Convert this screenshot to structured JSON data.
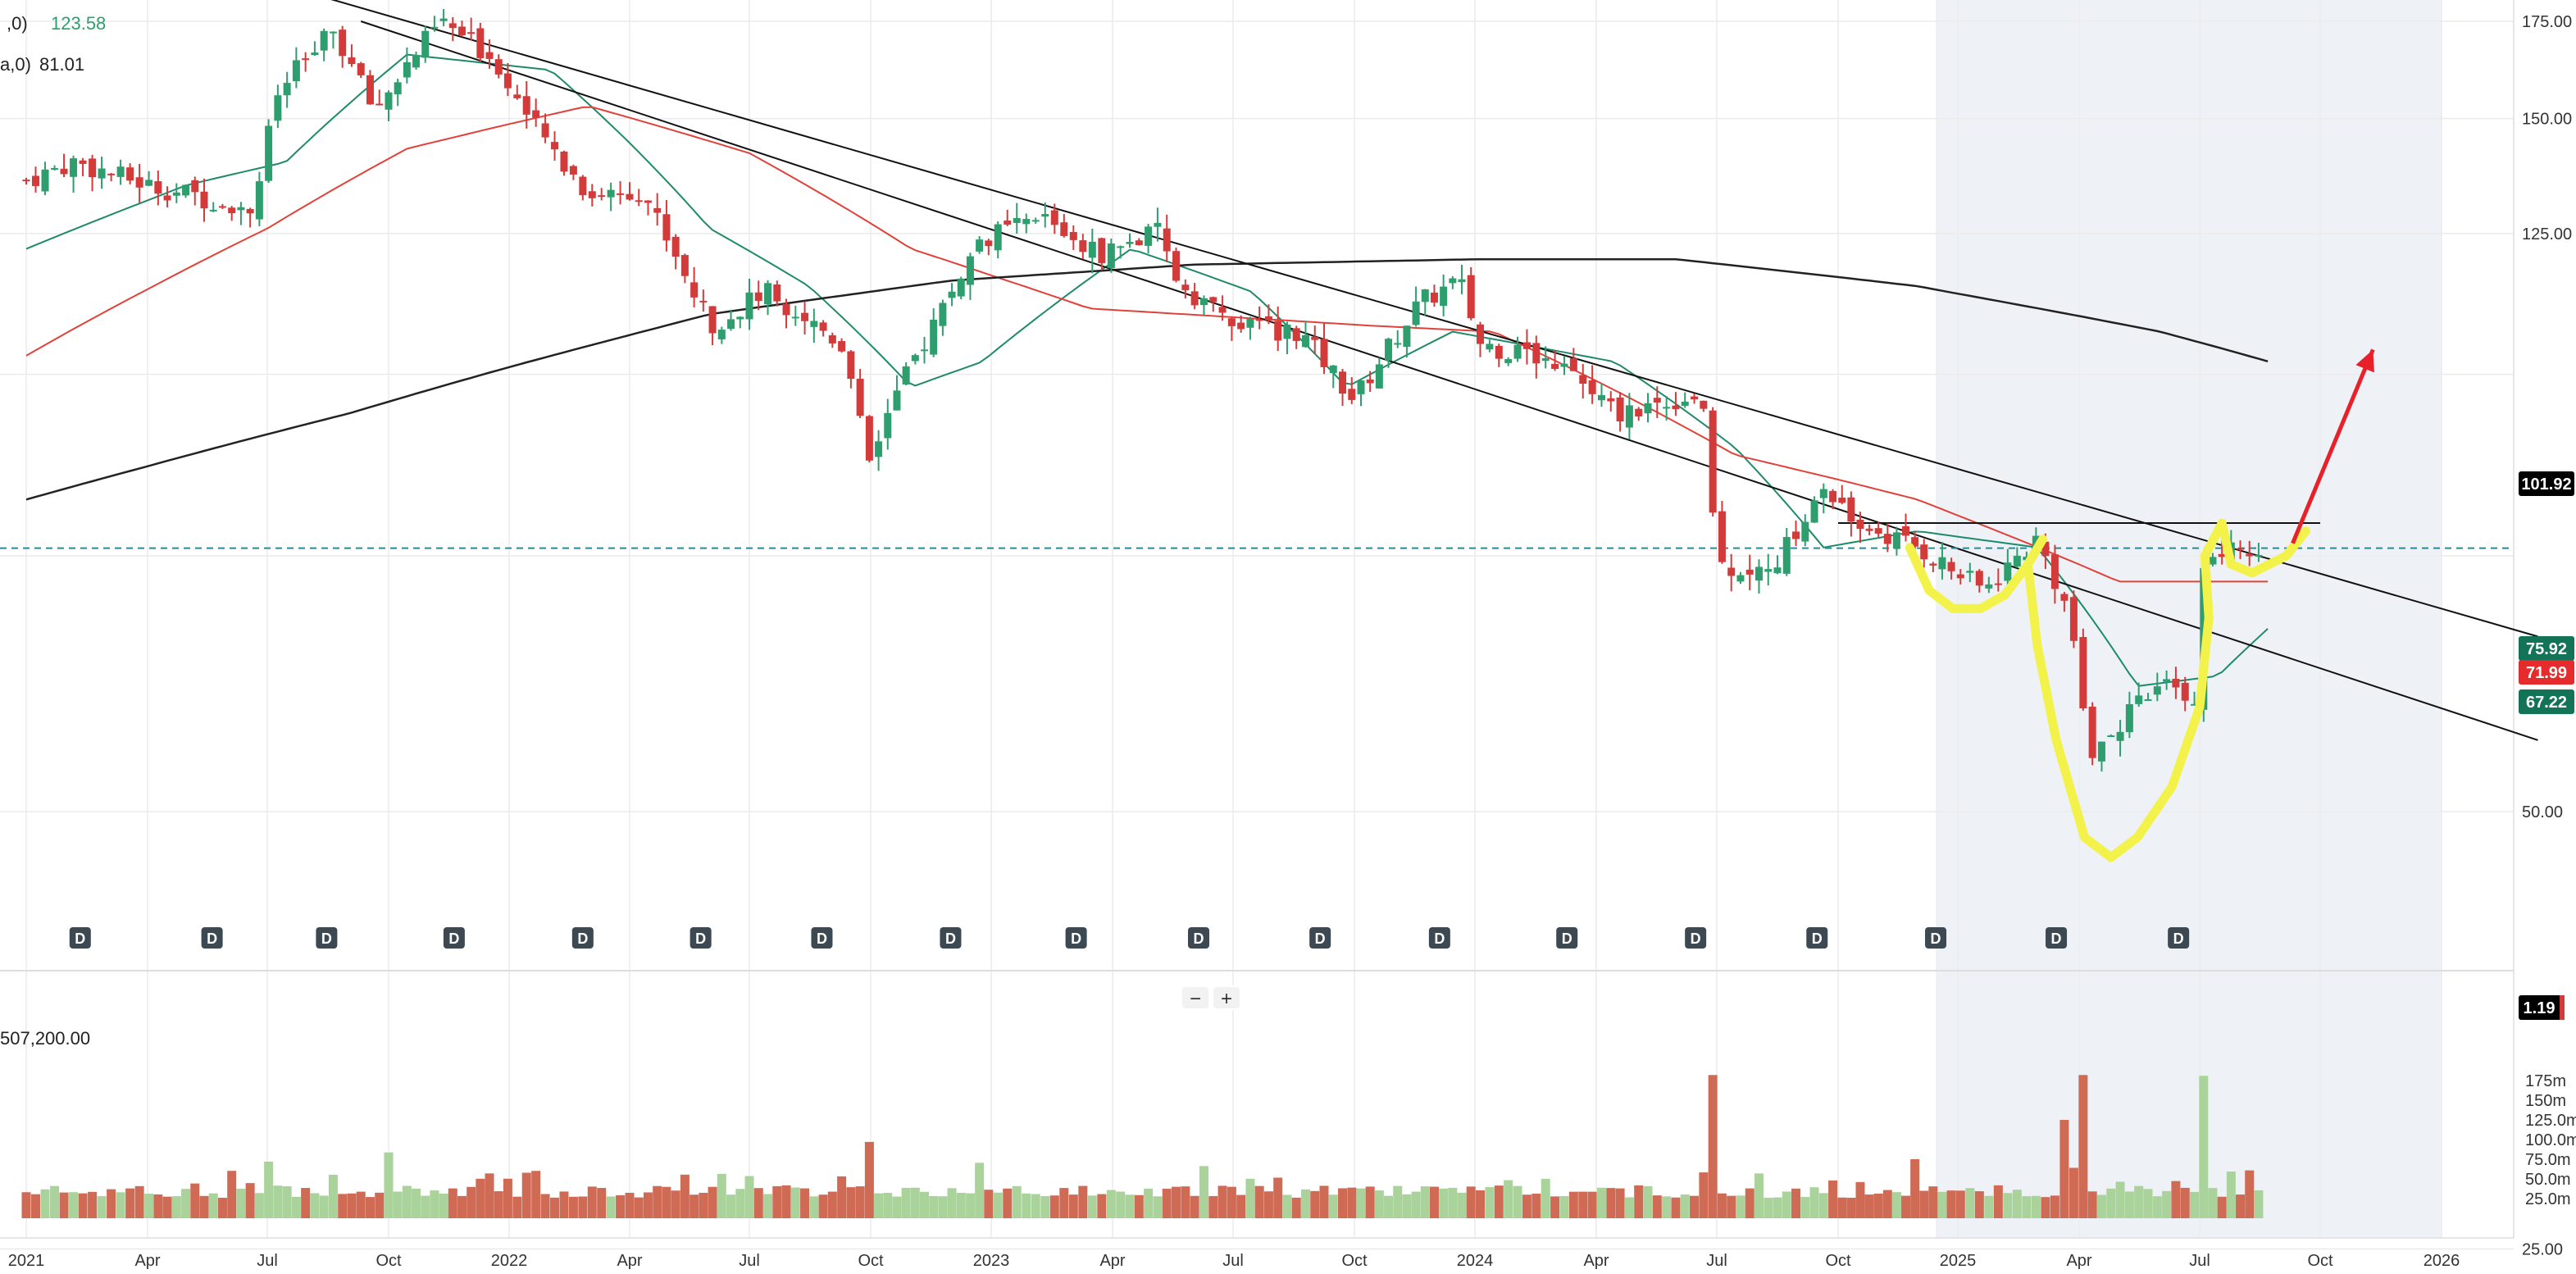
{
  "legend": {
    "ma_fast_label": ",0)",
    "ma_fast_value": "123.58",
    "ma_slow_label": "a,0)",
    "ma_slow_value": "81.01",
    "volume_value": "507,200.00"
  },
  "price_badges": [
    {
      "text": "101.92",
      "bg": "#000000",
      "price": 101.92
    },
    {
      "text": "75.92",
      "bg": "#137357",
      "price": 75.92
    },
    {
      "text": "71.99",
      "bg": "#e52b2b",
      "price": 71.99
    },
    {
      "text": "67.22",
      "bg": "#137357",
      "price": 67.22
    }
  ],
  "volume_badge": {
    "text": "1.19"
  },
  "zoom": {
    "minus": "−",
    "plus": "+"
  },
  "dividend_marker": "D",
  "colors": {
    "up": "#2f9e6e",
    "down": "#d33b3b",
    "vol_up": "#a9d39a",
    "vol_down": "#cf6a55",
    "ma20": "#1f8a6a",
    "ma50": "#e0423a",
    "ma200": "#222222",
    "highlight": "#f2f24a",
    "arrow": "#e8202a",
    "shade": "#eef2f6"
  },
  "chart_data": {
    "type": "candlestick",
    "interval": "weekly",
    "price_axis": {
      "ticks": [
        175,
        150,
        125,
        50,
        25
      ],
      "tick_labels": [
        "175.00",
        "150.00",
        "125.00",
        "50.00",
        "25.00"
      ],
      "log_scale": true
    },
    "volume_axis": {
      "ticks": [
        25,
        50,
        75,
        100,
        125,
        150,
        175
      ],
      "tick_labels": [
        "25.0m",
        "50.0m",
        "75.0m",
        "100.0m",
        "125.0m",
        "150m",
        "175m"
      ]
    },
    "x_axis": {
      "tick_labels": [
        "2021",
        "Apr",
        "Jul",
        "Oct",
        "2022",
        "Apr",
        "Jul",
        "Oct",
        "2023",
        "Apr",
        "Jul",
        "Oct",
        "2024",
        "Apr",
        "Jul",
        "Oct",
        "2025",
        "Apr",
        "Jul",
        "Oct",
        "2026"
      ],
      "tick_dates": [
        "2021-01-01",
        "2021-04-01",
        "2021-07-01",
        "2021-10-01",
        "2022-01-01",
        "2022-04-01",
        "2022-07-01",
        "2022-10-01",
        "2023-01-01",
        "2023-04-01",
        "2023-07-01",
        "2023-10-01",
        "2024-01-01",
        "2024-04-01",
        "2024-07-01",
        "2024-10-01",
        "2025-01-01",
        "2025-04-01",
        "2025-07-01",
        "2025-10-01",
        "2026-01-01"
      ]
    },
    "price_keypoints": [
      {
        "date": "2021-01-01",
        "close": 136
      },
      {
        "date": "2021-02-05",
        "close": 140
      },
      {
        "date": "2021-04-01",
        "close": 135
      },
      {
        "date": "2021-06-20",
        "close": 130
      },
      {
        "date": "2021-07-10",
        "close": 157
      },
      {
        "date": "2021-08-20",
        "close": 172
      },
      {
        "date": "2021-09-20",
        "close": 152
      },
      {
        "date": "2021-11-10",
        "close": 175
      },
      {
        "date": "2021-12-20",
        "close": 165
      },
      {
        "date": "2022-01-20",
        "close": 148
      },
      {
        "date": "2022-03-01",
        "close": 133
      },
      {
        "date": "2022-04-10",
        "close": 134
      },
      {
        "date": "2022-06-01",
        "close": 108
      },
      {
        "date": "2022-07-15",
        "close": 114
      },
      {
        "date": "2022-09-10",
        "close": 105
      },
      {
        "date": "2022-09-30",
        "close": 88
      },
      {
        "date": "2022-11-10",
        "close": 105
      },
      {
        "date": "2022-12-25",
        "close": 124
      },
      {
        "date": "2023-02-10",
        "close": 128
      },
      {
        "date": "2023-03-20",
        "close": 121
      },
      {
        "date": "2023-05-05",
        "close": 125
      },
      {
        "date": "2023-05-20",
        "close": 116
      },
      {
        "date": "2023-07-01",
        "close": 108
      },
      {
        "date": "2023-08-20",
        "close": 107
      },
      {
        "date": "2023-10-01",
        "close": 96
      },
      {
        "date": "2023-11-20",
        "close": 112
      },
      {
        "date": "2023-12-20",
        "close": 116
      },
      {
        "date": "2024-01-05",
        "close": 105
      },
      {
        "date": "2024-03-01",
        "close": 102
      },
      {
        "date": "2024-04-15",
        "close": 94
      },
      {
        "date": "2024-06-20",
        "close": 97
      },
      {
        "date": "2024-07-01",
        "close": 74
      },
      {
        "date": "2024-08-10",
        "close": 73
      },
      {
        "date": "2024-09-20",
        "close": 83
      },
      {
        "date": "2024-10-15",
        "close": 79
      },
      {
        "date": "2024-12-01",
        "close": 76
      },
      {
        "date": "2025-01-20",
        "close": 71
      },
      {
        "date": "2025-03-01",
        "close": 77
      },
      {
        "date": "2025-03-25",
        "close": 68
      },
      {
        "date": "2025-04-10",
        "close": 55
      },
      {
        "date": "2025-06-01",
        "close": 61
      },
      {
        "date": "2025-06-28",
        "close": 60
      },
      {
        "date": "2025-07-05",
        "close": 75
      },
      {
        "date": "2025-08-20",
        "close": 76
      }
    ],
    "moving_averages": [
      {
        "period": 20,
        "points": [
          {
            "date": "2021-01-01",
            "value": 122
          },
          {
            "date": "2021-05-01",
            "value": 135
          },
          {
            "date": "2021-07-15",
            "value": 140
          },
          {
            "date": "2021-10-15",
            "value": 166
          },
          {
            "date": "2022-02-01",
            "value": 162
          },
          {
            "date": "2022-06-01",
            "value": 126
          },
          {
            "date": "2022-08-15",
            "value": 115
          },
          {
            "date": "2022-11-01",
            "value": 98
          },
          {
            "date": "2022-12-25",
            "value": 102
          },
          {
            "date": "2023-04-15",
            "value": 122
          },
          {
            "date": "2023-07-15",
            "value": 114
          },
          {
            "date": "2023-09-25",
            "value": 98
          },
          {
            "date": "2023-12-15",
            "value": 107
          },
          {
            "date": "2024-04-15",
            "value": 102
          },
          {
            "date": "2024-07-15",
            "value": 89
          },
          {
            "date": "2024-09-20",
            "value": 76
          },
          {
            "date": "2024-12-01",
            "value": 78
          },
          {
            "date": "2025-03-01",
            "value": 76
          },
          {
            "date": "2025-05-15",
            "value": 61
          },
          {
            "date": "2025-07-15",
            "value": 62
          },
          {
            "date": "2025-08-25",
            "value": 67.2
          }
        ]
      },
      {
        "period": 50,
        "points": [
          {
            "date": "2021-01-01",
            "value": 103
          },
          {
            "date": "2021-07-01",
            "value": 126
          },
          {
            "date": "2021-10-15",
            "value": 143
          },
          {
            "date": "2022-03-01",
            "value": 153
          },
          {
            "date": "2022-07-01",
            "value": 142
          },
          {
            "date": "2022-11-01",
            "value": 122
          },
          {
            "date": "2023-03-15",
            "value": 111
          },
          {
            "date": "2023-10-15",
            "value": 108
          },
          {
            "date": "2024-01-15",
            "value": 107
          },
          {
            "date": "2024-07-15",
            "value": 88
          },
          {
            "date": "2024-12-01",
            "value": 82
          },
          {
            "date": "2025-05-01",
            "value": 72
          },
          {
            "date": "2025-08-25",
            "value": 72
          }
        ]
      },
      {
        "period": 200,
        "points": [
          {
            "date": "2021-01-01",
            "value": 82
          },
          {
            "date": "2021-09-01",
            "value": 94
          },
          {
            "date": "2022-06-01",
            "value": 110
          },
          {
            "date": "2022-12-01",
            "value": 116
          },
          {
            "date": "2023-06-01",
            "value": 119
          },
          {
            "date": "2024-01-01",
            "value": 120
          },
          {
            "date": "2024-06-01",
            "value": 120
          },
          {
            "date": "2024-12-01",
            "value": 115
          },
          {
            "date": "2025-06-01",
            "value": 107
          },
          {
            "date": "2025-08-25",
            "value": 101.9
          }
        ]
      }
    ],
    "volume_keypoints": [
      {
        "date": "2021-07-05",
        "value": 72
      },
      {
        "date": "2021-10-01",
        "value": 60
      },
      {
        "date": "2022-09-30",
        "value": 97
      },
      {
        "date": "2024-07-01",
        "value": 182
      },
      {
        "date": "2024-12-01",
        "value": 75
      },
      {
        "date": "2025-03-20",
        "value": 125
      },
      {
        "date": "2025-04-01",
        "value": 182
      },
      {
        "date": "2025-07-01",
        "value": 181
      }
    ],
    "trendlines": [
      {
        "from": {
          "date": "2021-06-01",
          "price": 190
        },
        "to": {
          "date": "2026-03-15",
          "price": 66
        }
      },
      {
        "from": {
          "date": "2021-09-10",
          "price": 175
        },
        "to": {
          "date": "2026-03-15",
          "price": 56
        }
      },
      {
        "from": {
          "date": "2024-10-01",
          "price": 79
        },
        "to": {
          "date": "2025-10-01",
          "price": 79
        }
      }
    ],
    "dividend_dates": [
      "2021-02-10",
      "2021-05-20",
      "2021-08-15",
      "2021-11-20",
      "2022-02-25",
      "2022-05-25",
      "2022-08-25",
      "2022-12-01",
      "2023-03-05",
      "2023-06-05",
      "2023-09-05",
      "2023-12-05",
      "2024-03-10",
      "2024-06-15",
      "2024-09-15",
      "2024-12-15",
      "2025-03-15",
      "2025-06-15"
    ],
    "shaded_region": {
      "from": "2024-12-15",
      "to": "2026-01-01"
    }
  }
}
